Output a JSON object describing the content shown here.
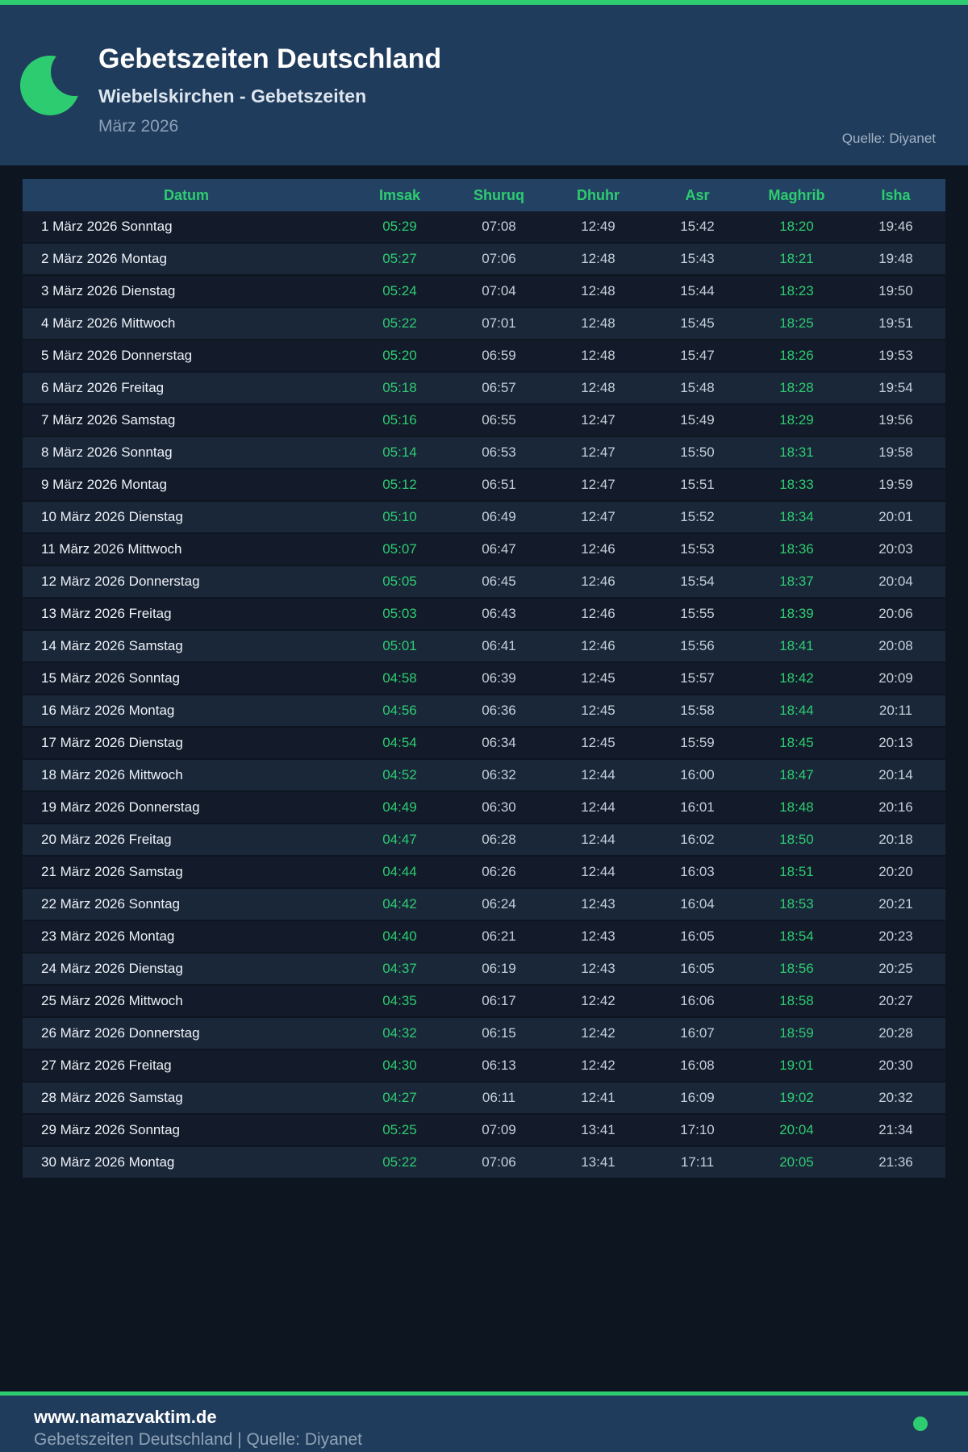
{
  "colors": {
    "accent_green": "#2ecc71",
    "panel_blue": "#203c5c",
    "page_background": "#0d1521",
    "table_header_blue": "#234263",
    "row_dark": "#131b2a",
    "row_light": "#1a2739",
    "time_text": "#c5cfd9",
    "date_text": "#eef2f7",
    "muted_text": "#8fa2b5"
  },
  "header": {
    "title": "Gebetszeiten Deutschland",
    "subtitle": "Wiebelskirchen - Gebetszeiten",
    "month": "März 2026",
    "source": "Quelle: Diyanet",
    "icon": "crescent-moon-icon"
  },
  "table": {
    "columns": [
      "Datum",
      "Imsak",
      "Shuruq",
      "Dhuhr",
      "Asr",
      "Maghrib",
      "Isha"
    ],
    "rows": [
      {
        "datum": "1 März 2026 Sonntag",
        "imsak": "05:29",
        "shuruq": "07:08",
        "dhuhr": "12:49",
        "asr": "15:42",
        "maghrib": "18:20",
        "isha": "19:46"
      },
      {
        "datum": "2 März 2026 Montag",
        "imsak": "05:27",
        "shuruq": "07:06",
        "dhuhr": "12:48",
        "asr": "15:43",
        "maghrib": "18:21",
        "isha": "19:48"
      },
      {
        "datum": "3 März 2026 Dienstag",
        "imsak": "05:24",
        "shuruq": "07:04",
        "dhuhr": "12:48",
        "asr": "15:44",
        "maghrib": "18:23",
        "isha": "19:50"
      },
      {
        "datum": "4 März 2026 Mittwoch",
        "imsak": "05:22",
        "shuruq": "07:01",
        "dhuhr": "12:48",
        "asr": "15:45",
        "maghrib": "18:25",
        "isha": "19:51"
      },
      {
        "datum": "5 März 2026 Donnerstag",
        "imsak": "05:20",
        "shuruq": "06:59",
        "dhuhr": "12:48",
        "asr": "15:47",
        "maghrib": "18:26",
        "isha": "19:53"
      },
      {
        "datum": "6 März 2026 Freitag",
        "imsak": "05:18",
        "shuruq": "06:57",
        "dhuhr": "12:48",
        "asr": "15:48",
        "maghrib": "18:28",
        "isha": "19:54"
      },
      {
        "datum": "7 März 2026 Samstag",
        "imsak": "05:16",
        "shuruq": "06:55",
        "dhuhr": "12:47",
        "asr": "15:49",
        "maghrib": "18:29",
        "isha": "19:56"
      },
      {
        "datum": "8 März 2026 Sonntag",
        "imsak": "05:14",
        "shuruq": "06:53",
        "dhuhr": "12:47",
        "asr": "15:50",
        "maghrib": "18:31",
        "isha": "19:58"
      },
      {
        "datum": "9 März 2026 Montag",
        "imsak": "05:12",
        "shuruq": "06:51",
        "dhuhr": "12:47",
        "asr": "15:51",
        "maghrib": "18:33",
        "isha": "19:59"
      },
      {
        "datum": "10 März 2026 Dienstag",
        "imsak": "05:10",
        "shuruq": "06:49",
        "dhuhr": "12:47",
        "asr": "15:52",
        "maghrib": "18:34",
        "isha": "20:01"
      },
      {
        "datum": "11 März 2026 Mittwoch",
        "imsak": "05:07",
        "shuruq": "06:47",
        "dhuhr": "12:46",
        "asr": "15:53",
        "maghrib": "18:36",
        "isha": "20:03"
      },
      {
        "datum": "12 März 2026 Donnerstag",
        "imsak": "05:05",
        "shuruq": "06:45",
        "dhuhr": "12:46",
        "asr": "15:54",
        "maghrib": "18:37",
        "isha": "20:04"
      },
      {
        "datum": "13 März 2026 Freitag",
        "imsak": "05:03",
        "shuruq": "06:43",
        "dhuhr": "12:46",
        "asr": "15:55",
        "maghrib": "18:39",
        "isha": "20:06"
      },
      {
        "datum": "14 März 2026 Samstag",
        "imsak": "05:01",
        "shuruq": "06:41",
        "dhuhr": "12:46",
        "asr": "15:56",
        "maghrib": "18:41",
        "isha": "20:08"
      },
      {
        "datum": "15 März 2026 Sonntag",
        "imsak": "04:58",
        "shuruq": "06:39",
        "dhuhr": "12:45",
        "asr": "15:57",
        "maghrib": "18:42",
        "isha": "20:09"
      },
      {
        "datum": "16 März 2026 Montag",
        "imsak": "04:56",
        "shuruq": "06:36",
        "dhuhr": "12:45",
        "asr": "15:58",
        "maghrib": "18:44",
        "isha": "20:11"
      },
      {
        "datum": "17 März 2026 Dienstag",
        "imsak": "04:54",
        "shuruq": "06:34",
        "dhuhr": "12:45",
        "asr": "15:59",
        "maghrib": "18:45",
        "isha": "20:13"
      },
      {
        "datum": "18 März 2026 Mittwoch",
        "imsak": "04:52",
        "shuruq": "06:32",
        "dhuhr": "12:44",
        "asr": "16:00",
        "maghrib": "18:47",
        "isha": "20:14"
      },
      {
        "datum": "19 März 2026 Donnerstag",
        "imsak": "04:49",
        "shuruq": "06:30",
        "dhuhr": "12:44",
        "asr": "16:01",
        "maghrib": "18:48",
        "isha": "20:16"
      },
      {
        "datum": "20 März 2026 Freitag",
        "imsak": "04:47",
        "shuruq": "06:28",
        "dhuhr": "12:44",
        "asr": "16:02",
        "maghrib": "18:50",
        "isha": "20:18"
      },
      {
        "datum": "21 März 2026 Samstag",
        "imsak": "04:44",
        "shuruq": "06:26",
        "dhuhr": "12:44",
        "asr": "16:03",
        "maghrib": "18:51",
        "isha": "20:20"
      },
      {
        "datum": "22 März 2026 Sonntag",
        "imsak": "04:42",
        "shuruq": "06:24",
        "dhuhr": "12:43",
        "asr": "16:04",
        "maghrib": "18:53",
        "isha": "20:21"
      },
      {
        "datum": "23 März 2026 Montag",
        "imsak": "04:40",
        "shuruq": "06:21",
        "dhuhr": "12:43",
        "asr": "16:05",
        "maghrib": "18:54",
        "isha": "20:23"
      },
      {
        "datum": "24 März 2026 Dienstag",
        "imsak": "04:37",
        "shuruq": "06:19",
        "dhuhr": "12:43",
        "asr": "16:05",
        "maghrib": "18:56",
        "isha": "20:25"
      },
      {
        "datum": "25 März 2026 Mittwoch",
        "imsak": "04:35",
        "shuruq": "06:17",
        "dhuhr": "12:42",
        "asr": "16:06",
        "maghrib": "18:58",
        "isha": "20:27"
      },
      {
        "datum": "26 März 2026 Donnerstag",
        "imsak": "04:32",
        "shuruq": "06:15",
        "dhuhr": "12:42",
        "asr": "16:07",
        "maghrib": "18:59",
        "isha": "20:28"
      },
      {
        "datum": "27 März 2026 Freitag",
        "imsak": "04:30",
        "shuruq": "06:13",
        "dhuhr": "12:42",
        "asr": "16:08",
        "maghrib": "19:01",
        "isha": "20:30"
      },
      {
        "datum": "28 März 2026 Samstag",
        "imsak": "04:27",
        "shuruq": "06:11",
        "dhuhr": "12:41",
        "asr": "16:09",
        "maghrib": "19:02",
        "isha": "20:32"
      },
      {
        "datum": "29 März 2026 Sonntag",
        "imsak": "05:25",
        "shuruq": "07:09",
        "dhuhr": "13:41",
        "asr": "17:10",
        "maghrib": "20:04",
        "isha": "21:34"
      },
      {
        "datum": "30 März 2026 Montag",
        "imsak": "05:22",
        "shuruq": "07:06",
        "dhuhr": "13:41",
        "asr": "17:11",
        "maghrib": "20:05",
        "isha": "21:36"
      }
    ]
  },
  "footer": {
    "website": "www.namazvaktim.de",
    "tagline": "Gebetszeiten Deutschland | Quelle: Diyanet"
  }
}
